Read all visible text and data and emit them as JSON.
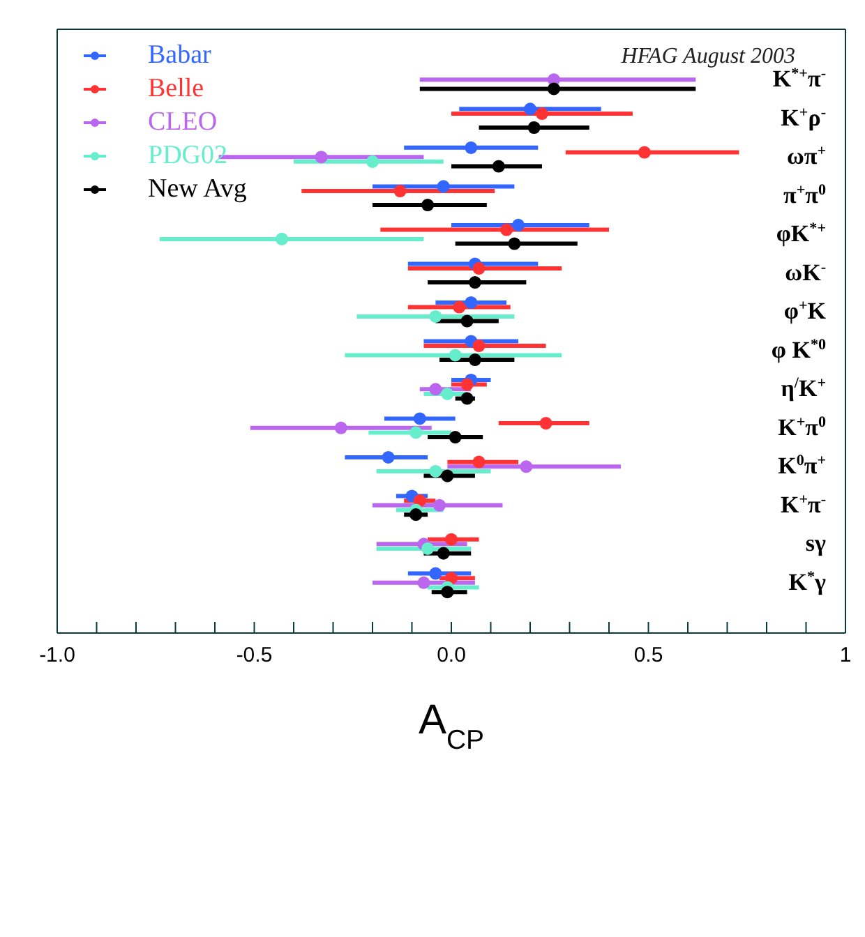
{
  "chart_data": {
    "type": "scatter",
    "orientation": "horizontal",
    "xlabel": "A$_{CP}$",
    "annotations": [
      "HFAG August 2003"
    ],
    "categories": [
      "K$^{*+}$π$^{-}$",
      "K$^{+}$ρ$^{-}$",
      "ωπ$^{+}$",
      "π$^{+}$π$^{0}$",
      "φK$^{*+}$",
      "ωK$^{-}$",
      "φ$^{+}$K",
      "φ K$^{*0}$",
      "η$^{/}$K$^{+}$",
      "K$^{+}$π$^{0}$",
      "K$^{0}$π$^{+}$",
      "K$^{+}$π$^{-}$",
      "sγ",
      "K$^{*}$γ"
    ],
    "xlim": [
      -1,
      1
    ],
    "xticks": [
      {
        "value": -1,
        "label": "-1.0"
      },
      {
        "value": -0.9,
        "label": null
      },
      {
        "value": -0.8,
        "label": null
      },
      {
        "value": -0.7,
        "label": null
      },
      {
        "value": -0.6,
        "label": null
      },
      {
        "value": -0.5,
        "label": "-0.5"
      },
      {
        "value": -0.4,
        "label": null
      },
      {
        "value": -0.3,
        "label": null
      },
      {
        "value": -0.2,
        "label": null
      },
      {
        "value": -0.1,
        "label": null
      },
      {
        "value": 0,
        "label": "0.0"
      },
      {
        "value": 0.1,
        "label": null
      },
      {
        "value": 0.2,
        "label": null
      },
      {
        "value": 0.3,
        "label": null
      },
      {
        "value": 0.4,
        "label": null
      },
      0.5,
      {
        "value": 0.6,
        "label": null
      },
      {
        "value": 0.7,
        "label": null
      },
      {
        "value": 0.8,
        "label": null
      },
      {
        "value": 0.9,
        "label": null
      },
      1
    ],
    "marker": "circle",
    "legend": "top left",
    "series": [
      {
        "name": "Babar",
        "color": "#3366ff",
        "values": [
          null,
          0.2,
          0.05,
          -0.02,
          0.17,
          0.06,
          0.05,
          0.05,
          0.05,
          -0.08,
          -0.16,
          -0.1,
          null,
          -0.04
        ],
        "errors": [
          null,
          [
            0.02,
            0.38
          ],
          [
            -0.12,
            0.22
          ],
          [
            -0.2,
            0.16
          ],
          [
            0.0,
            0.35
          ],
          [
            -0.11,
            0.22
          ],
          [
            -0.04,
            0.14
          ],
          [
            -0.07,
            0.17
          ],
          [
            0.0,
            0.1
          ],
          [
            -0.17,
            0.01
          ],
          [
            -0.27,
            -0.06
          ],
          [
            -0.14,
            -0.06
          ],
          null,
          [
            -0.11,
            0.05
          ]
        ]
      },
      {
        "name": "Belle",
        "color": "#ff3333",
        "values": [
          null,
          0.23,
          0.49,
          -0.13,
          0.14,
          0.07,
          0.02,
          0.07,
          0.04,
          0.24,
          0.07,
          -0.08,
          0.0,
          0.0
        ],
        "errors": [
          null,
          [
            0.0,
            0.46
          ],
          [
            0.29,
            0.73
          ],
          [
            -0.38,
            0.11
          ],
          [
            -0.18,
            0.4
          ],
          [
            -0.11,
            0.28
          ],
          [
            -0.11,
            0.15
          ],
          [
            -0.07,
            0.24
          ],
          [
            0.0,
            0.09
          ],
          [
            0.12,
            0.35
          ],
          [
            -0.01,
            0.17
          ],
          [
            -0.12,
            -0.04
          ],
          [
            -0.06,
            0.07
          ],
          [
            -0.03,
            0.06
          ]
        ]
      },
      {
        "name": "CLEO",
        "color": "#bb66ee",
        "values": [
          0.26,
          null,
          -0.33,
          null,
          null,
          null,
          null,
          null,
          -0.04,
          -0.28,
          0.19,
          -0.03,
          -0.07,
          -0.07
        ],
        "errors": [
          [
            -0.08,
            0.62
          ],
          null,
          [
            -0.59,
            -0.07
          ],
          null,
          null,
          null,
          null,
          null,
          [
            -0.08,
            0.05
          ],
          [
            -0.51,
            -0.05
          ],
          [
            -0.01,
            0.43
          ],
          [
            -0.2,
            0.13
          ],
          [
            -0.19,
            0.04
          ],
          [
            -0.2,
            0.06
          ]
        ]
      },
      {
        "name": "PDG02",
        "color": "#66eecc",
        "values": [
          null,
          null,
          -0.2,
          null,
          -0.43,
          null,
          -0.04,
          0.01,
          -0.01,
          -0.09,
          -0.04,
          -0.09,
          -0.06,
          -0.01
        ],
        "errors": [
          null,
          null,
          [
            -0.4,
            -0.02
          ],
          null,
          [
            -0.74,
            -0.07
          ],
          null,
          [
            -0.24,
            0.16
          ],
          [
            -0.27,
            0.28
          ],
          [
            -0.07,
            0.04
          ],
          [
            -0.21,
            0.0
          ],
          [
            -0.19,
            0.1
          ],
          [
            -0.14,
            -0.02
          ],
          [
            -0.19,
            0.05
          ],
          [
            -0.06,
            0.07
          ]
        ]
      },
      {
        "name": "New Avg",
        "color": "#000000",
        "values": [
          0.26,
          0.21,
          0.12,
          -0.06,
          0.16,
          0.06,
          0.04,
          0.06,
          0.04,
          0.01,
          -0.01,
          -0.09,
          -0.02,
          -0.01
        ],
        "errors": [
          [
            -0.08,
            0.62
          ],
          [
            0.07,
            0.35
          ],
          [
            0.0,
            0.23
          ],
          [
            -0.2,
            0.09
          ],
          [
            0.01,
            0.32
          ],
          [
            -0.06,
            0.19
          ],
          [
            -0.04,
            0.12
          ],
          [
            -0.03,
            0.16
          ],
          [
            0.01,
            0.06
          ],
          [
            -0.06,
            0.08
          ],
          [
            -0.07,
            0.06
          ],
          [
            -0.12,
            -0.06
          ],
          [
            -0.07,
            0.05
          ],
          [
            -0.05,
            0.04
          ]
        ]
      }
    ]
  }
}
